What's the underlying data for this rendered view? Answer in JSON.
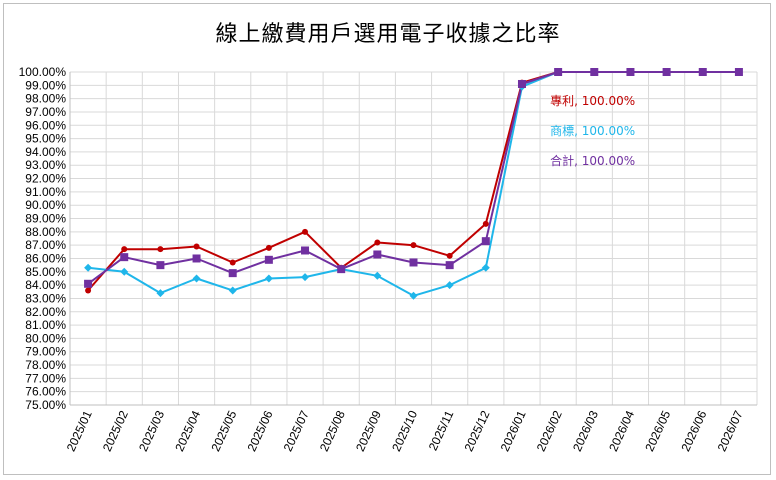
{
  "chart_data": {
    "type": "line",
    "title": "線上繳費用戶選用電子收據之比率",
    "xlabel": "",
    "ylabel": "",
    "ylim": [
      75,
      100
    ],
    "ytick_step": 1,
    "ytick_format": "percent_2dp",
    "grid": true,
    "legend": "none",
    "categories": [
      "2025/01",
      "2025/02",
      "2025/03",
      "2025/04",
      "2025/05",
      "2025/06",
      "2025/07",
      "2025/08",
      "2025/09",
      "2025/10",
      "2025/11",
      "2025/12",
      "2026/01",
      "2026/02",
      "2026/03",
      "2026/04",
      "2026/05",
      "2026/06",
      "2026/07"
    ],
    "series": [
      {
        "name": "專利",
        "color": "#c00000",
        "marker": "circle",
        "values": [
          83.6,
          86.7,
          86.7,
          86.9,
          85.7,
          86.8,
          88.0,
          85.3,
          87.2,
          87.0,
          86.2,
          88.6,
          99.2,
          100.0,
          null,
          null,
          null,
          null,
          null
        ]
      },
      {
        "name": "商標",
        "color": "#1fb6ea",
        "marker": "diamond",
        "values": [
          85.3,
          85.0,
          83.4,
          84.5,
          83.6,
          84.5,
          84.6,
          85.2,
          84.7,
          83.2,
          84.0,
          85.3,
          98.9,
          100.0,
          null,
          null,
          null,
          null,
          null
        ]
      },
      {
        "name": "合計",
        "color": "#7030a0",
        "marker": "square",
        "values": [
          84.1,
          86.1,
          85.5,
          86.0,
          84.9,
          85.9,
          86.6,
          85.2,
          86.3,
          85.7,
          85.5,
          87.3,
          99.1,
          100.0,
          100.0,
          100.0,
          100.0,
          100.0,
          100.0
        ]
      }
    ],
    "annotations": [
      {
        "text": "專利, 100.00%",
        "color": "#c00000"
      },
      {
        "text": "商標, 100.00%",
        "color": "#1fb6ea"
      },
      {
        "text": "合計, 100.00%",
        "color": "#7030a0"
      }
    ]
  }
}
